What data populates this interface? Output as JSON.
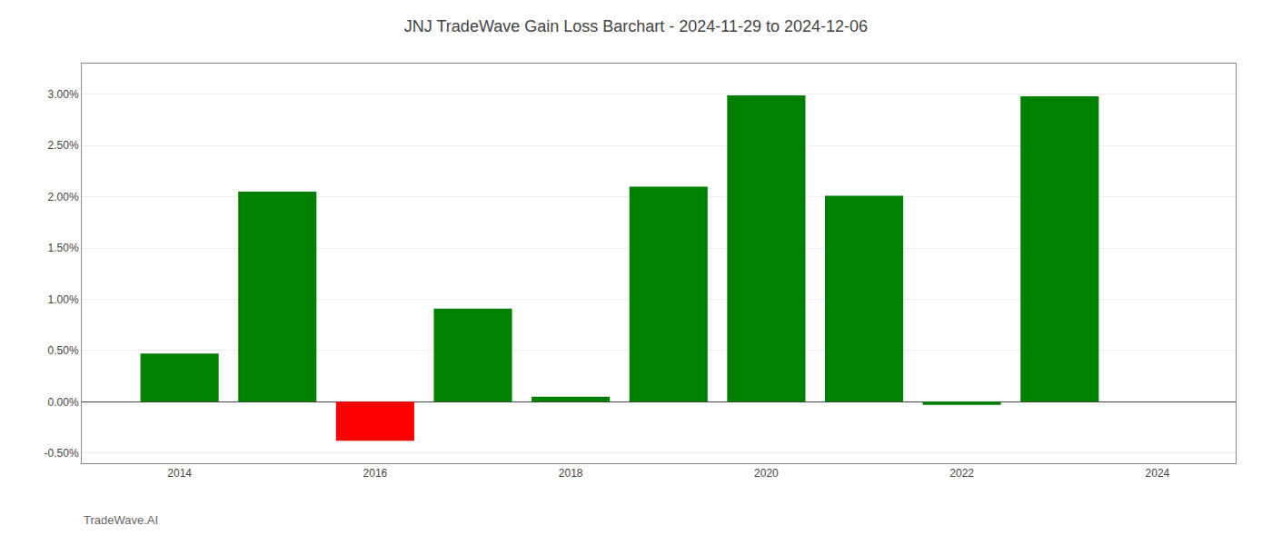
{
  "chart_data": {
    "type": "bar",
    "title": "JNJ TradeWave Gain Loss Barchart - 2024-11-29 to 2024-12-06",
    "annotations": [
      "TradeWave.AI"
    ],
    "x": [
      2014,
      2015,
      2016,
      2017,
      2018,
      2019,
      2020,
      2021,
      2022,
      2023
    ],
    "values": [
      0.0047,
      0.0205,
      -0.0038,
      0.0091,
      0.0005,
      0.021,
      0.0299,
      0.0201,
      -0.0003,
      0.0298
    ],
    "colors": [
      "#008000",
      "#008000",
      "#ff0000",
      "#008000",
      "#008000",
      "#008000",
      "#008000",
      "#008000",
      "#008000",
      "#008000"
    ],
    "xlim": [
      2013.0,
      2024.8
    ],
    "xticks": [
      2014,
      2016,
      2018,
      2020,
      2022,
      2024
    ],
    "ylim": [
      -0.006,
      0.033
    ],
    "yticks": [
      {
        "value": -0.005,
        "label": "-0.50%"
      },
      {
        "value": 0,
        "label": "0.00%"
      },
      {
        "value": 0.005,
        "label": "0.50%"
      },
      {
        "value": 0.01,
        "label": "1.00%"
      },
      {
        "value": 0.015,
        "label": "1.50%"
      },
      {
        "value": 0.02,
        "label": "2.00%"
      },
      {
        "value": 0.025,
        "label": "2.50%"
      },
      {
        "value": 0.03,
        "label": "3.00%"
      }
    ],
    "grid": true
  }
}
